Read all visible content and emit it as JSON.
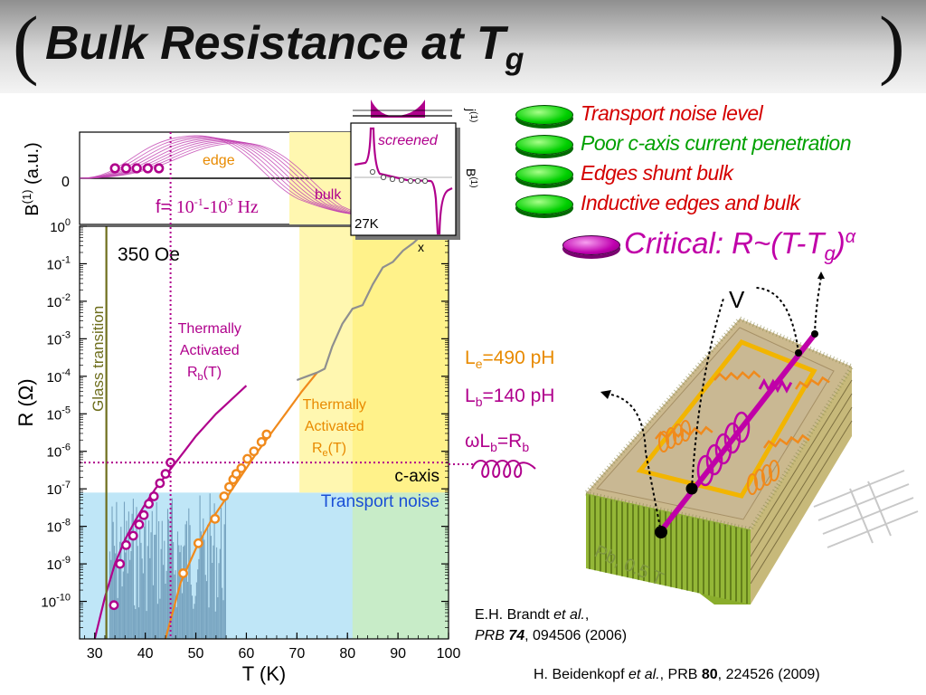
{
  "title": {
    "open_paren": "(",
    "text": "Bulk Resistance at T",
    "sub": "g",
    "close_paren": ")"
  },
  "bullets": [
    {
      "text": "Transport noise level",
      "color": "#d40000"
    },
    {
      "text": "Poor c-axis current penetration",
      "color": "#00a000"
    },
    {
      "text": "Edges shunt bulk",
      "color": "#d40000"
    },
    {
      "text": "Inductive edges and bulk",
      "color": "#d40000"
    }
  ],
  "critical": {
    "text_a": "Critical: R~(T-T",
    "sub": "g",
    "text_b": ")",
    "sup": "α"
  },
  "inductance": {
    "le_a": "L",
    "le_sub": "e",
    "le_b": "=490 pH",
    "lb_a": "L",
    "lb_sub": "b",
    "lb_b": "=140 pH",
    "wl_a": "ωL",
    "wl_sub": "b",
    "wl_b": "=R",
    "wl_sub2": "b"
  },
  "schematic": {
    "v_label": "V",
    "field_label": "Pb, 0.5 T"
  },
  "references": {
    "ref1_author": "E.H. Brandt ",
    "ref1_etal": "et al.",
    "ref1_comma": ",",
    "ref1_journal": "PRB ",
    "ref1_vol": "74",
    "ref1_rest": ", 094506 (2006)",
    "ref2_author": "H. Beidenkopf ",
    "ref2_etal": "et al.",
    "ref2_mid": ", PRB ",
    "ref2_vol": "80",
    "ref2_rest": ", 224526 (2009)"
  },
  "chart_data": [
    {
      "type": "line",
      "title": "",
      "xlabel": "T (K)",
      "ylabel": "R (Ω)",
      "log_y": true,
      "xlim": [
        27,
        100
      ],
      "ylim": [
        -11,
        0
      ],
      "x_ticks": [
        30,
        40,
        50,
        60,
        70,
        80,
        90,
        100
      ],
      "y_ticks": [
        0,
        -1,
        -2,
        -3,
        -4,
        -5,
        -6,
        -7,
        -8,
        -9,
        -10
      ],
      "y_tick_labels": [
        {
          "base": "10",
          "exp": "0"
        },
        {
          "base": "10",
          "exp": "-1"
        },
        {
          "base": "10",
          "exp": "-2"
        },
        {
          "base": "10",
          "exp": "-3"
        },
        {
          "base": "10",
          "exp": "-4"
        },
        {
          "base": "10",
          "exp": "-5"
        },
        {
          "base": "10",
          "exp": "-6"
        },
        {
          "base": "10",
          "exp": "-7"
        },
        {
          "base": "10",
          "exp": "-8"
        },
        {
          "base": "10",
          "exp": "-9"
        },
        {
          "base": "10",
          "exp": "-10"
        }
      ],
      "regions": [
        {
          "x": [
            27,
            100
          ],
          "y": [
            -11,
            -7.1
          ],
          "color": "#bfe6f7"
        },
        {
          "x": [
            70.5,
            100
          ],
          "y": [
            -7.1,
            0
          ],
          "color": "#fff7b0"
        },
        {
          "x": [
            81,
            100
          ],
          "y": [
            -7.1,
            0
          ],
          "color": "#fff28a"
        },
        {
          "x": [
            81,
            100
          ],
          "y": [
            -11,
            -7.1
          ],
          "color": "#c8ecc8"
        }
      ],
      "noise_level": -7.1,
      "c_axis_level": -6.3,
      "glass_transition_T": 32.3,
      "vertical_dotted_T": 45,
      "series": [
        {
          "name": "R_b",
          "color": "#b0008c",
          "x": [
            33.8,
            35,
            36.2,
            37.6,
            38.8,
            39.7,
            40.7,
            41.7,
            42.9,
            44,
            45
          ],
          "values": [
            -10.1,
            -9.0,
            -8.5,
            -8.25,
            -7.95,
            -7.7,
            -7.4,
            -7.2,
            -6.85,
            -6.6,
            -6.3
          ]
        },
        {
          "name": "R_e",
          "color": "#f08a1c",
          "x": [
            47.5,
            50.5,
            53.8,
            55.6,
            56.6,
            57.4,
            58,
            59,
            60.2,
            61.5,
            63,
            64
          ],
          "values": [
            -9.25,
            -8.45,
            -7.8,
            -7.2,
            -6.95,
            -6.75,
            -6.6,
            -6.45,
            -6.2,
            -6.0,
            -5.75,
            -5.55
          ]
        }
      ],
      "fits": [
        {
          "name": "Rb fit",
          "color": "#b0008c",
          "x": [
            30,
            32,
            34,
            36,
            38,
            40,
            42,
            44,
            46,
            48,
            50,
            52,
            54,
            56,
            58,
            60
          ],
          "values": [
            -11,
            -9.9,
            -9.0,
            -8.35,
            -7.85,
            -7.4,
            -7.0,
            -6.65,
            -6.3,
            -5.95,
            -5.6,
            -5.3,
            -5.0,
            -4.75,
            -4.5,
            -4.25
          ]
        },
        {
          "name": "Re fit",
          "color": "#f08a1c",
          "x": [
            44,
            47,
            50,
            53,
            56,
            59,
            62,
            65,
            68,
            71,
            74
          ],
          "values": [
            -11,
            -9.5,
            -8.6,
            -7.85,
            -7.25,
            -6.65,
            -6.05,
            -5.5,
            -4.95,
            -4.4,
            -3.9
          ]
        },
        {
          "name": "Transport",
          "color": "#8f8f8f",
          "x": [
            70,
            72,
            74,
            75.5,
            77,
            79,
            81,
            83,
            85,
            87,
            89,
            91,
            93,
            95,
            97,
            99,
            100
          ],
          "values": [
            -4.1,
            -4.0,
            -3.9,
            -3.8,
            -3.2,
            -2.6,
            -2.2,
            -2.1,
            -1.55,
            -1.1,
            -0.95,
            -0.65,
            -0.45,
            -0.2,
            0.05,
            0.1,
            0.15
          ]
        }
      ],
      "annotations": {
        "field": "350 Oe",
        "glass": "Glass transition",
        "thermal_b_a": "Thermally",
        "thermal_b_b": "Activated",
        "thermal_b_c": "R",
        "thermal_b_sub": "b",
        "thermal_b_d": "(T)",
        "thermal_e_a": "Thermally",
        "thermal_e_b": "Activated",
        "thermal_e_c": "R",
        "thermal_e_sub": "e",
        "thermal_e_d": "(T)",
        "c_axis": "c-axis",
        "transport_noise": "Transport noise",
        "x_marker": "x"
      }
    },
    {
      "type": "line",
      "title": "",
      "xlabel": "",
      "ylabel_a": "B",
      "ylabel_sup": "(1)",
      "ylabel_b": " (a.u.)",
      "zero_label": "0",
      "series_labels": {
        "edge": "edge",
        "bulk": "bulk"
      },
      "frequency": {
        "a": "f= ",
        "b": "10",
        "sup1": "-1",
        "c": "-10",
        "sup2": "3",
        "d": " Hz"
      },
      "markers_x": [
        34,
        36.2,
        38.3,
        40.5,
        42.7
      ]
    },
    {
      "type": "line",
      "title": "",
      "labels": {
        "screened": "screened",
        "temp": "27K",
        "j_a": "j",
        "j_sup": "(1)",
        "b_a": "B",
        "b_sup": "(1)"
      }
    }
  ]
}
